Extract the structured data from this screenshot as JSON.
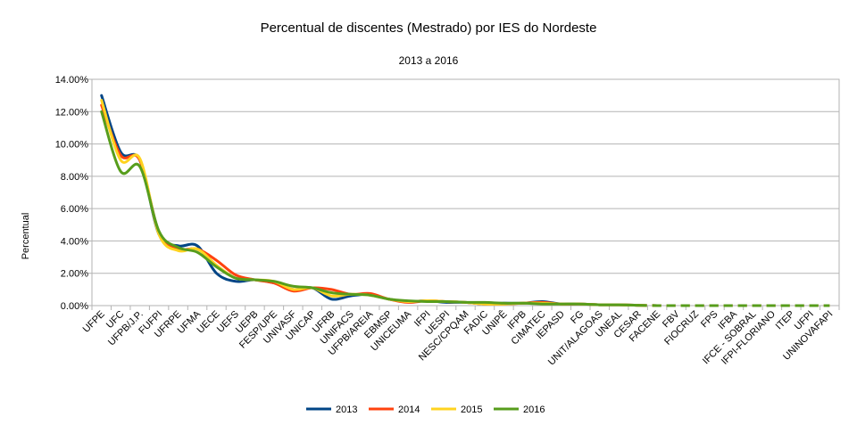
{
  "chart_data": {
    "type": "line",
    "title": "Percentual de discentes (Mestrado) por IES do Nordeste",
    "subtitle": "2013 a 2016",
    "ylabel": "Percentual",
    "xlabel": "",
    "ylim": [
      0,
      14
    ],
    "yticks": [
      "0.00%",
      "2.00%",
      "4.00%",
      "6.00%",
      "8.00%",
      "10.00%",
      "12.00%",
      "14.00%"
    ],
    "grid": true,
    "legend_position": "bottom",
    "categories": [
      "UFPE",
      "UFC",
      "UFPB/J.P.",
      "FUFPI",
      "UFRPE",
      "UFMA",
      "UECE",
      "UEFS",
      "UEPB",
      "FESP/UPE",
      "UNIVASF",
      "UNICAP",
      "UFRB",
      "UNIFACS",
      "UFPB/AREIA",
      "EBMSP",
      "UNICEUMA",
      "IFPI",
      "UESPI",
      "NESC/CPQAM",
      "FADIC",
      "UNIPÊ",
      "IFPB",
      "CIMATEC",
      "IEPASD",
      "FG",
      "UNIT/ALAGOAS",
      "UNEAL",
      "CESAR",
      "FACENE",
      "FBV",
      "FIOCRUZ",
      "FPS",
      "IFBA",
      "IFCE - SOBRAL",
      "IFPI-FLORIANO",
      "ITEP",
      "UFPI",
      "UNINOVAFAPI"
    ],
    "series": [
      {
        "name": "2013",
        "color": "#004586",
        "values": [
          13.0,
          9.5,
          9.0,
          4.4,
          3.7,
          3.7,
          2.0,
          1.5,
          1.6,
          1.4,
          1.0,
          1.1,
          0.4,
          0.6,
          0.7,
          0.4,
          0.25,
          0.3,
          0.2,
          0.2,
          0.1,
          0.15,
          0.15,
          0.25,
          0.1,
          0.1,
          0.05,
          0.05,
          0.02,
          0.0,
          0.0,
          0.0,
          0.0,
          0.0,
          0.0,
          0.0,
          0.0,
          0.0,
          0.0
        ]
      },
      {
        "name": "2014",
        "color": "#ff420e",
        "values": [
          12.4,
          9.3,
          9.0,
          4.5,
          3.5,
          3.5,
          2.8,
          1.9,
          1.6,
          1.4,
          0.9,
          1.1,
          1.0,
          0.7,
          0.75,
          0.4,
          0.2,
          0.3,
          0.25,
          0.2,
          0.1,
          0.1,
          0.15,
          0.2,
          0.1,
          0.1,
          0.05,
          0.05,
          0.02,
          0.0,
          0.0,
          0.0,
          0.0,
          0.0,
          0.0,
          0.0,
          0.0,
          0.0,
          0.0
        ]
      },
      {
        "name": "2015",
        "color": "#ffd320",
        "values": [
          12.7,
          9.0,
          9.1,
          4.4,
          3.4,
          3.5,
          2.5,
          1.7,
          1.6,
          1.5,
          1.0,
          1.1,
          0.6,
          0.7,
          0.65,
          0.4,
          0.25,
          0.3,
          0.25,
          0.2,
          0.1,
          0.1,
          0.15,
          0.15,
          0.1,
          0.1,
          0.05,
          0.05,
          0.02,
          0.0,
          0.0,
          0.0,
          0.0,
          0.0,
          0.0,
          0.0,
          0.0,
          0.0,
          0.0
        ]
      },
      {
        "name": "2016",
        "color": "#579d1c",
        "values": [
          12.0,
          8.3,
          8.6,
          4.6,
          3.6,
          3.3,
          2.4,
          1.7,
          1.6,
          1.5,
          1.2,
          1.1,
          0.8,
          0.7,
          0.65,
          0.4,
          0.3,
          0.25,
          0.25,
          0.2,
          0.2,
          0.15,
          0.15,
          0.1,
          0.1,
          0.1,
          0.05,
          0.05,
          0.02,
          0.0,
          0.0,
          0.0,
          0.0,
          0.0,
          0.0,
          0.0,
          0.0,
          0.0,
          0.0
        ]
      }
    ]
  }
}
